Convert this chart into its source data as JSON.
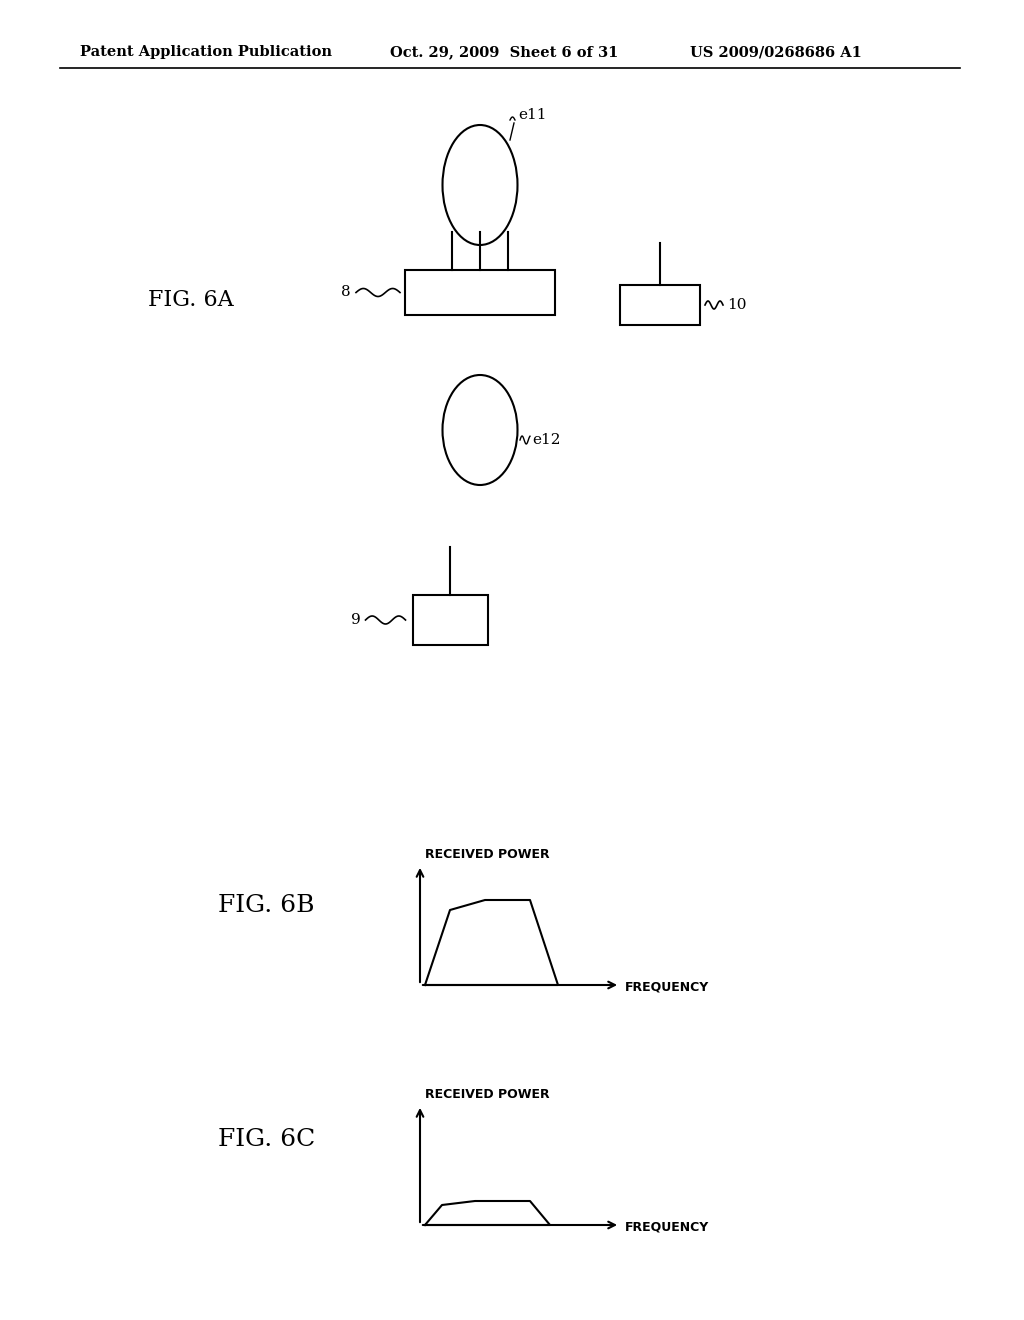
{
  "bg_color": "#ffffff",
  "header_left": "Patent Application Publication",
  "header_mid": "Oct. 29, 2009  Sheet 6 of 31",
  "header_right": "US 2009/0268686 A1",
  "fig6a_label": "FIG. 6A",
  "fig6b_label": "FIG. 6B",
  "fig6c_label": "FIG. 6C",
  "label_8": "8",
  "label_9": "9",
  "label_10": "10",
  "label_e11": "e11",
  "label_e12": "e12",
  "received_power": "RECEIVED POWER",
  "frequency": "FREQUENCY",
  "line_color": "#000000"
}
